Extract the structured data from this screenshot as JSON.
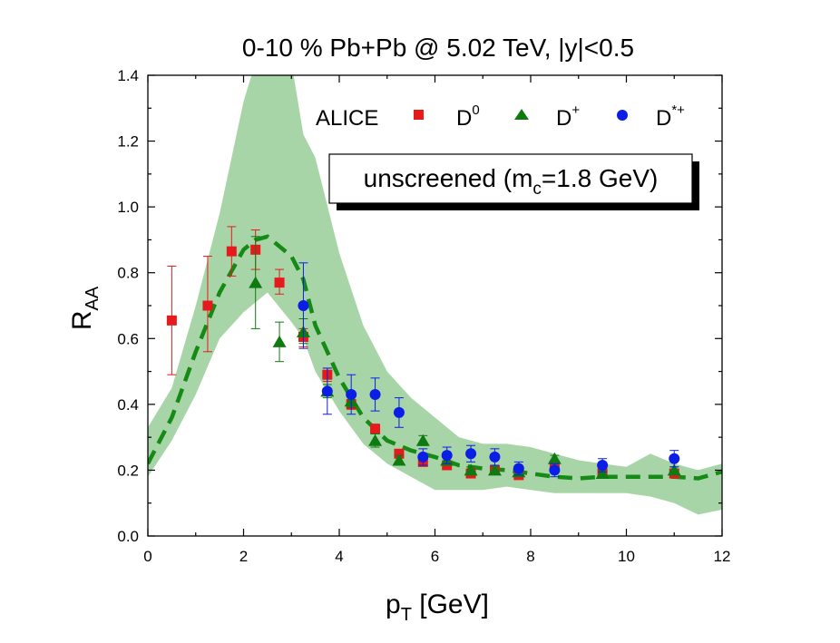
{
  "chart_data": {
    "type": "scatter",
    "title": "0-10 % Pb+Pb @ 5.02 TeV, |y|<0.5",
    "xlabel": {
      "main": "p",
      "sub": "T",
      "rest": " [GeV]"
    },
    "ylabel": {
      "main": "R",
      "sub": "AA"
    },
    "xlim": [
      0,
      12
    ],
    "ylim": [
      0,
      1.4
    ],
    "x_ticks": [
      "0",
      "2",
      "4",
      "6",
      "8",
      "10",
      "12"
    ],
    "y_ticks": [
      "0.0",
      "0.2",
      "0.4",
      "0.6",
      "0.8",
      "1.0",
      "1.2",
      "1.4"
    ],
    "legend": {
      "experiment": "ALICE",
      "placement": "top-right",
      "entries": [
        {
          "main": "D",
          "sup": "0"
        },
        {
          "main": "D",
          "sup": "+"
        },
        {
          "main": "D",
          "sup": "*+"
        }
      ]
    },
    "annotation": {
      "pre": "unscreened (m",
      "sub": "c",
      "post": "=1.8 GeV)"
    },
    "colors": {
      "d0": "#e41a1c",
      "dplus": "#0f7a0f",
      "dstar": "#0a1ee6",
      "band": "#a8d5a8",
      "curve": "#158a15"
    },
    "series": [
      {
        "marker": "square",
        "color": "#e41a1c",
        "points": [
          {
            "x": 0.5,
            "y": 0.655,
            "lo": 0.49,
            "hi": 0.82
          },
          {
            "x": 1.25,
            "y": 0.7,
            "lo": 0.56,
            "hi": 0.85
          },
          {
            "x": 1.75,
            "y": 0.865,
            "lo": 0.79,
            "hi": 0.94
          },
          {
            "x": 2.25,
            "y": 0.87,
            "lo": 0.81,
            "hi": 0.93
          },
          {
            "x": 2.75,
            "y": 0.77,
            "lo": 0.735,
            "hi": 0.81
          },
          {
            "x": 3.25,
            "y": 0.605,
            "lo": 0.575,
            "hi": 0.63
          },
          {
            "x": 3.75,
            "y": 0.49,
            "lo": 0.47,
            "hi": 0.51
          },
          {
            "x": 4.25,
            "y": 0.4,
            "lo": 0.385,
            "hi": 0.415
          },
          {
            "x": 4.75,
            "y": 0.325,
            "lo": 0.31,
            "hi": 0.34
          },
          {
            "x": 5.25,
            "y": 0.25,
            "lo": 0.24,
            "hi": 0.26
          },
          {
            "x": 5.75,
            "y": 0.225,
            "lo": 0.215,
            "hi": 0.235
          },
          {
            "x": 6.25,
            "y": 0.215,
            "lo": 0.205,
            "hi": 0.225
          },
          {
            "x": 6.75,
            "y": 0.19,
            "lo": 0.18,
            "hi": 0.2
          },
          {
            "x": 7.25,
            "y": 0.2,
            "lo": 0.19,
            "hi": 0.21
          },
          {
            "x": 7.75,
            "y": 0.185,
            "lo": 0.175,
            "hi": 0.195
          },
          {
            "x": 8.5,
            "y": 0.215,
            "lo": 0.205,
            "hi": 0.225
          },
          {
            "x": 9.5,
            "y": 0.19,
            "lo": 0.18,
            "hi": 0.2
          },
          {
            "x": 11.0,
            "y": 0.19,
            "lo": 0.18,
            "hi": 0.2
          }
        ]
      },
      {
        "marker": "triangle",
        "color": "#0f7a0f",
        "points": [
          {
            "x": 2.25,
            "y": 0.77,
            "lo": 0.63,
            "hi": 0.91
          },
          {
            "x": 2.75,
            "y": 0.59,
            "lo": 0.53,
            "hi": 0.65
          },
          {
            "x": 3.25,
            "y": 0.62,
            "lo": 0.585,
            "hi": 0.66
          },
          {
            "x": 3.75,
            "y": 0.44,
            "lo": 0.42,
            "hi": 0.46
          },
          {
            "x": 4.25,
            "y": 0.41,
            "lo": 0.39,
            "hi": 0.43
          },
          {
            "x": 4.75,
            "y": 0.29,
            "lo": 0.27,
            "hi": 0.31
          },
          {
            "x": 5.25,
            "y": 0.23,
            "lo": 0.215,
            "hi": 0.245
          },
          {
            "x": 5.75,
            "y": 0.29,
            "lo": 0.275,
            "hi": 0.305
          },
          {
            "x": 6.25,
            "y": 0.23,
            "lo": 0.215,
            "hi": 0.245
          },
          {
            "x": 6.75,
            "y": 0.2,
            "lo": 0.19,
            "hi": 0.21
          },
          {
            "x": 7.25,
            "y": 0.2,
            "lo": 0.19,
            "hi": 0.21
          },
          {
            "x": 7.75,
            "y": 0.195,
            "lo": 0.185,
            "hi": 0.205
          },
          {
            "x": 8.5,
            "y": 0.235,
            "lo": 0.225,
            "hi": 0.245
          },
          {
            "x": 9.5,
            "y": 0.19,
            "lo": 0.18,
            "hi": 0.2
          },
          {
            "x": 11.0,
            "y": 0.2,
            "lo": 0.19,
            "hi": 0.21
          }
        ]
      },
      {
        "marker": "circle",
        "color": "#0a1ee6",
        "points": [
          {
            "x": 3.25,
            "y": 0.7,
            "lo": 0.57,
            "hi": 0.83
          },
          {
            "x": 3.75,
            "y": 0.44,
            "lo": 0.37,
            "hi": 0.51
          },
          {
            "x": 4.25,
            "y": 0.43,
            "lo": 0.37,
            "hi": 0.49
          },
          {
            "x": 4.75,
            "y": 0.43,
            "lo": 0.38,
            "hi": 0.48
          },
          {
            "x": 5.25,
            "y": 0.375,
            "lo": 0.33,
            "hi": 0.42
          },
          {
            "x": 5.75,
            "y": 0.24,
            "lo": 0.215,
            "hi": 0.265
          },
          {
            "x": 6.25,
            "y": 0.245,
            "lo": 0.22,
            "hi": 0.27
          },
          {
            "x": 6.75,
            "y": 0.25,
            "lo": 0.225,
            "hi": 0.275
          },
          {
            "x": 7.25,
            "y": 0.24,
            "lo": 0.215,
            "hi": 0.265
          },
          {
            "x": 7.75,
            "y": 0.205,
            "lo": 0.185,
            "hi": 0.225
          },
          {
            "x": 8.5,
            "y": 0.2,
            "lo": 0.18,
            "hi": 0.22
          },
          {
            "x": 9.5,
            "y": 0.215,
            "lo": 0.195,
            "hi": 0.235
          },
          {
            "x": 11.0,
            "y": 0.235,
            "lo": 0.21,
            "hi": 0.26
          }
        ]
      }
    ],
    "model_curve": {
      "style": "dashed",
      "color": "#158a15",
      "x": [
        0,
        0.5,
        1.0,
        1.5,
        2.0,
        2.25,
        2.5,
        3.0,
        3.25,
        3.5,
        4.0,
        4.5,
        5.0,
        5.5,
        6.0,
        6.5,
        7.0,
        7.5,
        8.0,
        8.5,
        9.0,
        9.5,
        10.0,
        10.5,
        11.0,
        11.5,
        12.0
      ],
      "y": [
        0.22,
        0.36,
        0.56,
        0.74,
        0.87,
        0.9,
        0.91,
        0.85,
        0.78,
        0.64,
        0.48,
        0.36,
        0.29,
        0.26,
        0.24,
        0.215,
        0.205,
        0.2,
        0.19,
        0.18,
        0.175,
        0.18,
        0.18,
        0.18,
        0.18,
        0.175,
        0.195
      ]
    },
    "model_band": {
      "color": "#a8d5a8",
      "x": [
        0,
        0.5,
        1.0,
        1.5,
        2.0,
        2.25,
        2.5,
        3.0,
        3.25,
        3.5,
        4.0,
        4.5,
        5.0,
        5.5,
        6.0,
        6.5,
        7.0,
        7.5,
        8.0,
        8.5,
        9.0,
        9.5,
        10.0,
        10.5,
        11.0,
        11.5,
        12.0
      ],
      "lower": [
        0.18,
        0.29,
        0.43,
        0.6,
        0.68,
        0.71,
        0.74,
        0.65,
        0.6,
        0.5,
        0.38,
        0.28,
        0.22,
        0.18,
        0.14,
        0.14,
        0.14,
        0.15,
        0.14,
        0.13,
        0.13,
        0.13,
        0.13,
        0.12,
        0.1,
        0.065,
        0.08
      ],
      "upper": [
        0.33,
        0.45,
        0.7,
        0.98,
        1.32,
        1.44,
        1.44,
        1.44,
        1.22,
        1.15,
        0.86,
        0.64,
        0.5,
        0.42,
        0.36,
        0.3,
        0.28,
        0.28,
        0.27,
        0.25,
        0.23,
        0.22,
        0.21,
        0.25,
        0.22,
        0.2,
        0.22
      ]
    }
  }
}
